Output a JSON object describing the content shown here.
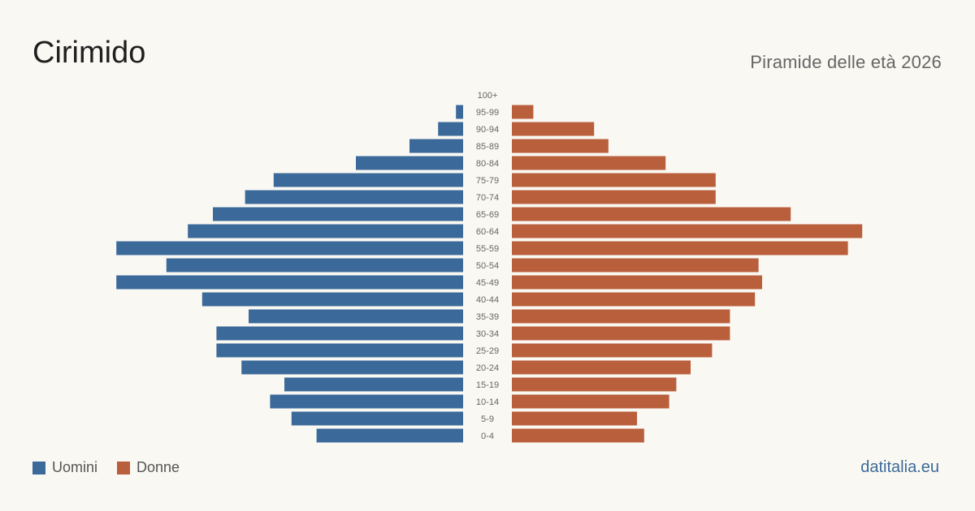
{
  "header": {
    "title": "Cirimido",
    "subtitle": "Piramide delle età 2026"
  },
  "legend": {
    "men_label": "Uomini",
    "women_label": "Donne"
  },
  "footer": {
    "brand": "datitalia.eu"
  },
  "colors": {
    "men": "#3b6a9a",
    "women": "#b95f3c",
    "background": "#faf8f3",
    "label": "#666666"
  },
  "chart_data": {
    "type": "bar",
    "orientation": "horizontal-population-pyramid",
    "categories": [
      "100+",
      "95-99",
      "90-94",
      "85-89",
      "80-84",
      "75-79",
      "70-74",
      "65-69",
      "60-64",
      "55-59",
      "50-54",
      "45-49",
      "40-44",
      "35-39",
      "30-34",
      "25-29",
      "20-24",
      "15-19",
      "10-14",
      "5-9",
      "0-4"
    ],
    "series": [
      {
        "name": "Uomini",
        "side": "left",
        "values": [
          0,
          2,
          7,
          15,
          30,
          53,
          61,
          70,
          77,
          97,
          83,
          97,
          73,
          60,
          69,
          69,
          62,
          50,
          54,
          48,
          41
        ]
      },
      {
        "name": "Donne",
        "side": "right",
        "values": [
          0,
          6,
          23,
          27,
          43,
          57,
          57,
          78,
          98,
          94,
          69,
          70,
          68,
          61,
          61,
          56,
          50,
          46,
          44,
          35,
          37
        ]
      }
    ],
    "xlim": [
      0,
      100
    ],
    "grid": false,
    "legend_position": "bottom-left"
  }
}
